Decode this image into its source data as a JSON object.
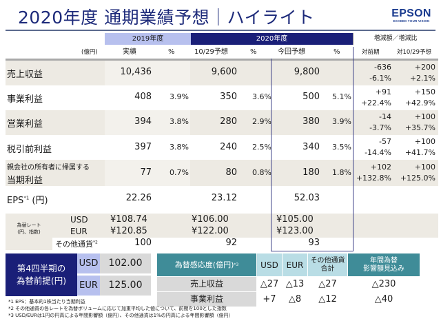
{
  "title": "2020年度 通期業績予想｜ハイライト",
  "logo": {
    "brand": "EPSON",
    "tagline": "EXCEED YOUR VISION"
  },
  "header": {
    "fy2019": "2019年度",
    "fy2020": "2020年度",
    "diff": "増減額／増減比",
    "unit": "(億円)",
    "cols": [
      "実績",
      "%",
      "10/29予想",
      "%",
      "今回予想",
      "%",
      "対前期",
      "対10/29予想"
    ]
  },
  "rows": [
    {
      "label": "売上収益",
      "actual": "10,436",
      "actual_pct": "",
      "oct": "9,600",
      "oct_pct": "",
      "cur": "9,800",
      "cur_pct": "",
      "yoy_amt": "-636",
      "yoy_pct": "-6.1%",
      "vs_amt": "+200",
      "vs_pct": "+2.1%"
    },
    {
      "label": "事業利益",
      "actual": "408",
      "actual_pct": "3.9%",
      "oct": "350",
      "oct_pct": "3.6%",
      "cur": "500",
      "cur_pct": "5.1%",
      "yoy_amt": "+91",
      "yoy_pct": "+22.4%",
      "vs_amt": "+150",
      "vs_pct": "+42.9%"
    },
    {
      "label": "営業利益",
      "actual": "394",
      "actual_pct": "3.8%",
      "oct": "280",
      "oct_pct": "2.9%",
      "cur": "380",
      "cur_pct": "3.9%",
      "yoy_amt": "-14",
      "yoy_pct": "-3.7%",
      "vs_amt": "+100",
      "vs_pct": "+35.7%"
    },
    {
      "label": "税引前利益",
      "actual": "397",
      "actual_pct": "3.8%",
      "oct": "240",
      "oct_pct": "2.5%",
      "cur": "340",
      "cur_pct": "3.5%",
      "yoy_amt": "-57",
      "yoy_pct": "-14.4%",
      "vs_amt": "+100",
      "vs_pct": "+41.7%"
    },
    {
      "label": "親会社の所有者に帰属する",
      "label2": "当期利益",
      "actual": "77",
      "actual_pct": "0.7%",
      "oct": "80",
      "oct_pct": "0.8%",
      "cur": "180",
      "cur_pct": "1.8%",
      "yoy_amt": "+102",
      "yoy_pct": "+132.8%",
      "vs_amt": "+100",
      "vs_pct": "+125.0%"
    }
  ],
  "eps": {
    "label": "EPS",
    "sup": "*1",
    "unit": "(円)",
    "actual": "22.26",
    "oct": "23.12",
    "cur": "52.03"
  },
  "fx": {
    "label1": "為替レート",
    "label2": "(円、指数)",
    "usd": {
      "cur": "USD",
      "actual": "¥108.74",
      "oct": "¥106.00",
      "now": "¥105.00"
    },
    "eur": {
      "cur": "EUR",
      "actual": "¥120.85",
      "oct": "¥122.00",
      "now": "¥123.00"
    },
    "other": {
      "cur": "その他通貨",
      "sup": "*2",
      "actual": "100",
      "oct": "92",
      "now": "93"
    }
  },
  "q4": {
    "label1": "第4四半期の",
    "label2": "為替前提(円)",
    "usd_label": "USD",
    "usd": "102.00",
    "eur_label": "EUR",
    "eur": "125.00"
  },
  "sensitivity": {
    "title": "為替感応度(億円)",
    "sup": "*3",
    "cols": [
      "USD",
      "EUR",
      "その他通貨",
      "合計",
      "年間為替",
      "影響額見込み"
    ],
    "rows": [
      {
        "label": "売上収益",
        "usd": "△27",
        "eur": "△13",
        "other": "△27",
        "annual": "△230"
      },
      {
        "label": "事業利益",
        "usd": "+7",
        "eur": "△8",
        "other": "△12",
        "annual": "△40"
      }
    ]
  },
  "footnotes": [
    "*1 EPS：基本的1株当たり当期利益",
    "*2 その他通貨の各レートを為替ボリュームに応じて加重平均した値について、前期を100とした指数",
    "*3 USD/EURは1円の円高による年間影響額（億円）、その他通貨は1%の円高による年間影響額（億円）"
  ],
  "colors": {
    "navy": "#1a1f78",
    "lavender": "#b7c0ee",
    "teal": "#3f8c98",
    "light_teal": "#b9dde5",
    "shade": "#edeae3"
  }
}
